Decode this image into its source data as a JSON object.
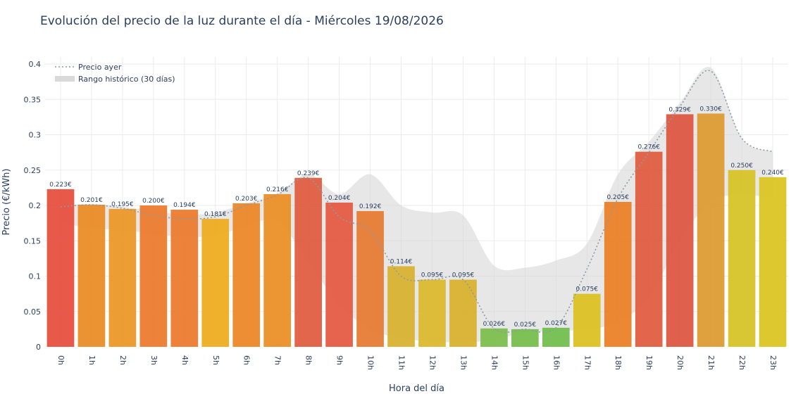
{
  "chart_data": {
    "type": "bar",
    "title": "Evolución del precio de la luz durante el día - Miércoles 19/08/2026",
    "xlabel": "Hora del día",
    "ylabel": "Precio (€/kWh)",
    "ylim": [
      0,
      0.41
    ],
    "yticks": [
      0,
      0.05,
      0.1,
      0.15,
      0.2,
      0.25,
      0.3,
      0.35,
      0.4
    ],
    "ytick_labels": [
      "0",
      "0.05",
      "0.1",
      "0.15",
      "0.2",
      "0.25",
      "0.3",
      "0.35",
      "0.4"
    ],
    "categories": [
      "0h",
      "1h",
      "2h",
      "3h",
      "4h",
      "5h",
      "6h",
      "7h",
      "8h",
      "9h",
      "10h",
      "11h",
      "12h",
      "13h",
      "14h",
      "15h",
      "16h",
      "17h",
      "18h",
      "19h",
      "20h",
      "21h",
      "22h",
      "23h"
    ],
    "series": [
      {
        "values": [
          0.223,
          0.201,
          0.195,
          0.2,
          0.194,
          0.181,
          0.203,
          0.216,
          0.239,
          0.204,
          0.192,
          0.114,
          0.095,
          0.095,
          0.026,
          0.025,
          0.027,
          0.075,
          0.205,
          0.276,
          0.329,
          0.33,
          0.25,
          0.24
        ],
        "labels": [
          "0.223€",
          "0.201€",
          "0.195€",
          "0.200€",
          "0.194€",
          "0.181€",
          "0.203€",
          "0.216€",
          "0.239€",
          "0.204€",
          "0.192€",
          "0.114€",
          "0.095€",
          "0.095€",
          "0.026€",
          "0.025€",
          "0.027€",
          "0.075€",
          "0.205€",
          "0.276€",
          "0.329€",
          "0.330€",
          "0.250€",
          "0.240€"
        ],
        "colors": [
          "#e74c3c",
          "#ea8a24",
          "#eb9623",
          "#ec7a2c",
          "#ec7a2c",
          "#eeaa1b",
          "#ec8525",
          "#eb8e24",
          "#e05a3e",
          "#e45840",
          "#e57a30",
          "#d8b02e",
          "#dbb82b",
          "#d8b02c",
          "#7bbd4a",
          "#74bc4a",
          "#70bd4b",
          "#dcc11f",
          "#eb7e23",
          "#e05a3e",
          "#dd5540",
          "#dd9a2e",
          "#d6c224",
          "#dcc41f"
        ]
      },
      {
        "name": "Precio ayer",
        "type": "line",
        "values": [
          0.198,
          0.201,
          0.196,
          0.186,
          0.181,
          0.184,
          0.2,
          0.215,
          0.239,
          0.184,
          0.164,
          0.1,
          0.095,
          0.095,
          0.026,
          0.025,
          0.027,
          0.11,
          0.21,
          0.275,
          0.34,
          0.39,
          0.295,
          0.276
        ]
      },
      {
        "name": "Rango histórico (30 días)",
        "type": "band",
        "upper": [
          0.2,
          0.202,
          0.198,
          0.192,
          0.187,
          0.19,
          0.203,
          0.217,
          0.244,
          0.216,
          0.244,
          0.2,
          0.19,
          0.186,
          0.115,
          0.112,
          0.122,
          0.146,
          0.244,
          0.29,
          0.345,
          0.395,
          0.295,
          0.276
        ],
        "lower": [
          0.175,
          0.168,
          0.165,
          0.16,
          0.155,
          0.158,
          0.17,
          0.178,
          0.12,
          0.06,
          0.025,
          0.012,
          0.008,
          0.006,
          0.01,
          0.02,
          0.022,
          0.025,
          0.035,
          0.07,
          0.15,
          0.205,
          0.215,
          0.21
        ]
      }
    ],
    "grid": true,
    "legend_position": "top-left",
    "colors": {
      "band": "#d9d9d9",
      "line": "#8c9aa6",
      "text": "#2a3f5f",
      "grid": "#ebebeb"
    }
  }
}
